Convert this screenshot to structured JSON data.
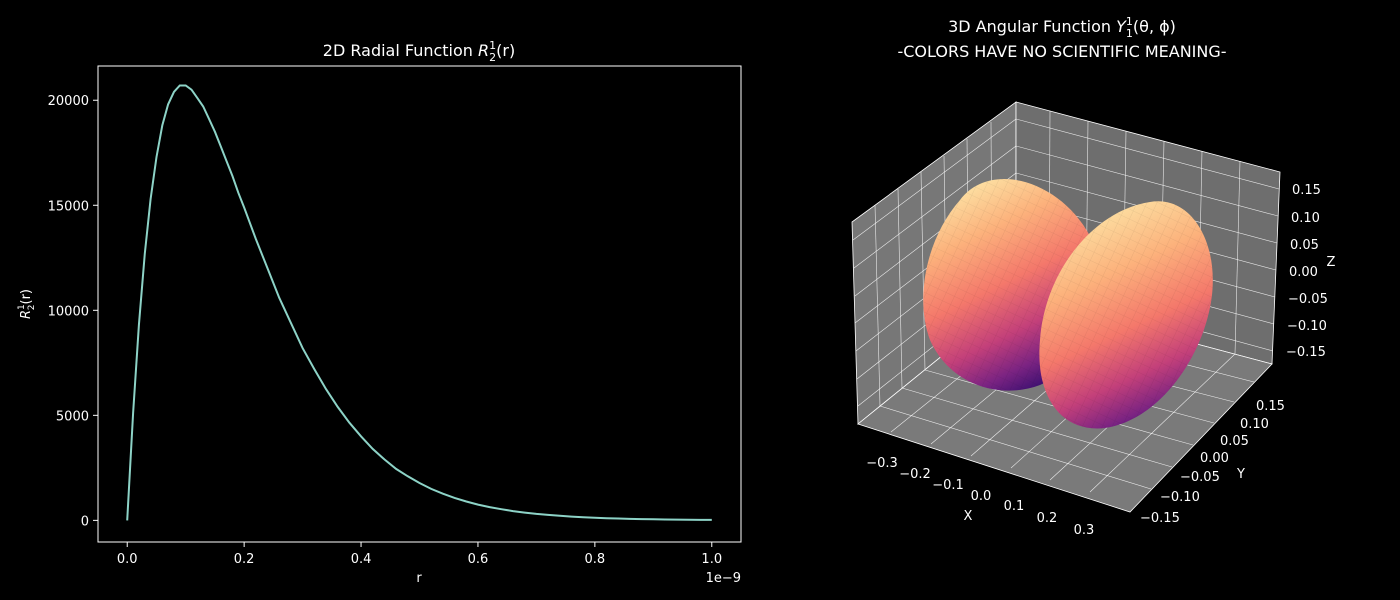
{
  "chart_data": [
    {
      "type": "line",
      "title_prefix": "2D Radial Function ",
      "title_math": "R",
      "title_sub": "2",
      "title_sup": "1",
      "title_suffix": "(r)",
      "xlabel": "r",
      "ylabel_math": "R",
      "ylabel_sub": "2",
      "ylabel_sup": "1",
      "ylabel_suffix": "(r)",
      "x_offset_label": "1e−9",
      "xlim": [
        -0.05,
        1.05
      ],
      "ylim": [
        -1030,
        21630
      ],
      "x_ticks": [
        0.0,
        0.2,
        0.4,
        0.6,
        0.8,
        1.0
      ],
      "x_tick_labels": [
        "0.0",
        "0.2",
        "0.4",
        "0.6",
        "0.8",
        "1.0"
      ],
      "y_ticks": [
        0,
        5000,
        10000,
        15000,
        20000
      ],
      "y_tick_labels": [
        "0",
        "5000",
        "10000",
        "15000",
        "20000"
      ],
      "line_color": "#8dd3c7",
      "series": [
        {
          "x": [
            0.0,
            0.01,
            0.02,
            0.03,
            0.04,
            0.05,
            0.06,
            0.07,
            0.08,
            0.09,
            0.1,
            0.11,
            0.12,
            0.13,
            0.14,
            0.15,
            0.16,
            0.17,
            0.18,
            0.19,
            0.2,
            0.22,
            0.24,
            0.26,
            0.28,
            0.3,
            0.32,
            0.34,
            0.36,
            0.38,
            0.4,
            0.42,
            0.44,
            0.46,
            0.48,
            0.5,
            0.52,
            0.54,
            0.56,
            0.58,
            0.6,
            0.62,
            0.64,
            0.66,
            0.68,
            0.7,
            0.72,
            0.74,
            0.76,
            0.78,
            0.8,
            0.82,
            0.84,
            0.86,
            0.88,
            0.9,
            0.92,
            0.94,
            0.96,
            0.98,
            1.0
          ],
          "y": [
            0,
            5100,
            9300,
            12700,
            15300,
            17300,
            18800,
            19800,
            20400,
            20700,
            20700,
            20500,
            20100,
            19700,
            19100,
            18500,
            17800,
            17100,
            16400,
            15600,
            14900,
            13400,
            12000,
            10600,
            9400,
            8200,
            7200,
            6250,
            5400,
            4650,
            4000,
            3400,
            2900,
            2450,
            2100,
            1780,
            1500,
            1270,
            1070,
            900,
            750,
            630,
            530,
            440,
            370,
            310,
            260,
            215,
            180,
            150,
            125,
            105,
            87,
            72,
            60,
            50,
            42,
            35,
            29,
            24,
            20
          ]
        }
      ]
    },
    {
      "type": "surface3d",
      "title_line1_prefix": "3D Angular Function ",
      "title_line1_math": "Y",
      "title_line1_sub": "1",
      "title_line1_sup": "1",
      "title_line1_suffix": "(θ, ϕ)",
      "title_line2": "-COLORS HAVE NO SCIENTIFIC MEANING-",
      "xlabel": "X",
      "ylabel": "Y",
      "zlabel": "Z",
      "x_tick_labels": [
        "−0.3",
        "−0.2",
        "−0.1",
        "0.0",
        "0.1",
        "0.2",
        "0.3"
      ],
      "y_tick_labels": [
        "−0.15",
        "−0.10",
        "−0.05",
        "0.00",
        "0.05",
        "0.10",
        "0.15"
      ],
      "z_tick_labels": [
        "−0.15",
        "−0.10",
        "−0.05",
        "0.00",
        "0.05",
        "0.10",
        "0.15"
      ],
      "colormap": "magma",
      "pane_color": "#777777",
      "lobe_light_color": "#fde7a8",
      "lobe_dark_color": "#3b0f70"
    }
  ]
}
